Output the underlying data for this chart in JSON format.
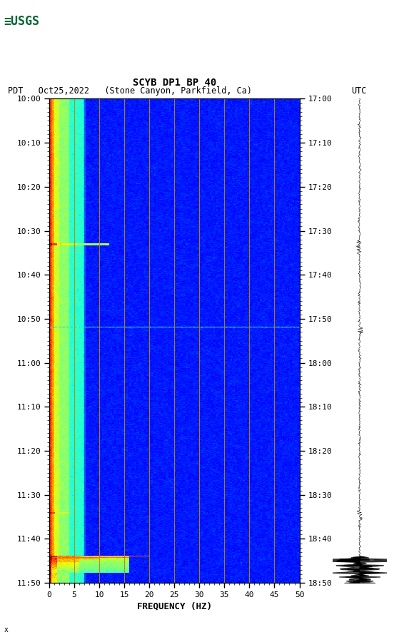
{
  "title_line1": "SCYB DP1 BP 40",
  "title_line2_left": "PDT   Oct25,2022   (Stone Canyon, Parkfield, Ca)",
  "title_line2_right": "UTC",
  "xlabel": "FREQUENCY (HZ)",
  "freq_min": 0,
  "freq_max": 50,
  "ytick_labels_left": [
    "10:00",
    "10:10",
    "10:20",
    "10:30",
    "10:40",
    "10:50",
    "11:00",
    "11:10",
    "11:20",
    "11:30",
    "11:40",
    "11:50"
  ],
  "ytick_labels_right": [
    "17:00",
    "17:10",
    "17:20",
    "17:30",
    "17:40",
    "17:50",
    "18:00",
    "18:10",
    "18:20",
    "18:30",
    "18:40",
    "18:50"
  ],
  "xtick_positions": [
    0,
    5,
    10,
    15,
    20,
    25,
    30,
    35,
    40,
    45,
    50
  ],
  "vertical_grid_lines": [
    5,
    10,
    15,
    20,
    25,
    30,
    35,
    40,
    45
  ],
  "bg_color": "#ffffff",
  "colormap": "jet",
  "n_freq": 250,
  "n_time": 710,
  "font_family": "monospace",
  "title_fontsize": 10,
  "tick_fontsize": 8,
  "axis_label_fontsize": 9,
  "usgs_green": "#006633",
  "grid_color": "#b8860b",
  "vmin": -10,
  "vmax": 10
}
